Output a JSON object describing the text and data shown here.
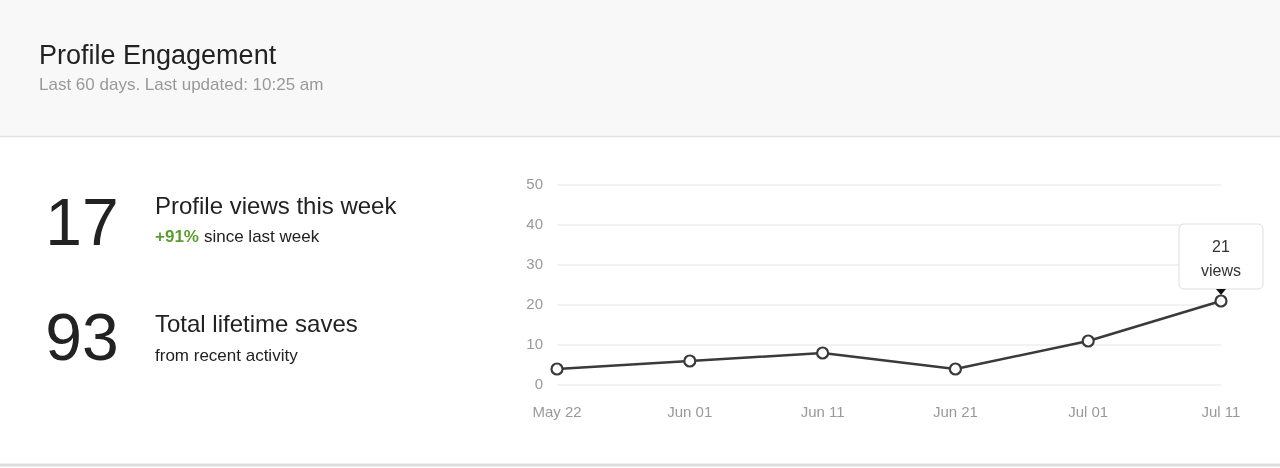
{
  "chart_data": {
    "type": "line",
    "title": "Profile Engagement",
    "subtitle": "Last 60 days. Last updated: 10:25 am",
    "x": [
      "--05-22",
      "--06-01",
      "--06-11",
      "--06-21",
      "--07-01",
      "--07-11"
    ],
    "series": [
      {
        "color": "#3a3a3a",
        "values": [
          4,
          6,
          8,
          4,
          11,
          21
        ]
      }
    ],
    "xlim": [
      "--05-22",
      "--07-11"
    ],
    "xticks": [
      {
        "value": "--05-22",
        "label": "May 22"
      },
      {
        "value": "--06-01",
        "label": "Jun 01"
      },
      {
        "value": "--06-11",
        "label": "Jun 11"
      },
      {
        "value": "--06-21",
        "label": "Jun 21"
      },
      {
        "value": "--07-01",
        "label": "Jul 01"
      },
      {
        "value": "--07-11",
        "label": "Jul 11"
      }
    ],
    "ylim": [
      0,
      50
    ],
    "yticks": [
      0,
      10,
      20,
      30,
      40,
      50
    ],
    "grid": "y",
    "marker": "circle",
    "line_style": "solid",
    "annotations": [
      "17",
      "Profile views this week",
      "+91%",
      "since last week",
      "93",
      "Total lifetime saves",
      "from recent activity",
      {
        "text": "21 views",
        "x": "--07-11",
        "y": 21
      }
    ]
  }
}
